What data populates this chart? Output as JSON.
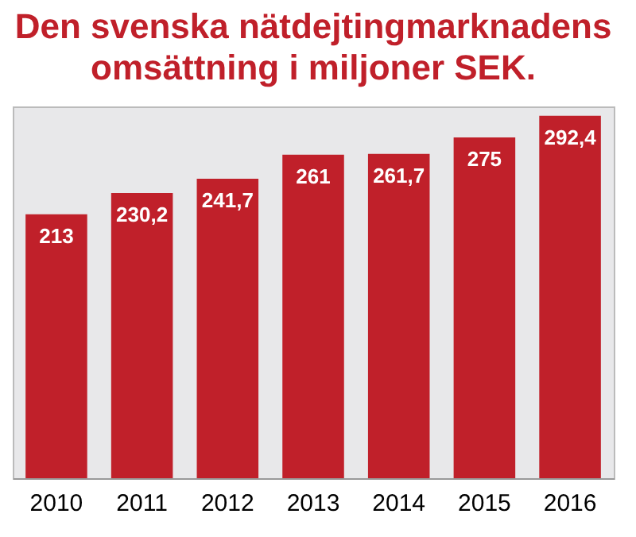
{
  "chart_data": {
    "type": "bar",
    "title": "Den svenska nätdejtingmarknadens omsättning i miljoner SEK.",
    "categories": [
      "2010",
      "2011",
      "2012",
      "2013",
      "2014",
      "2015",
      "2016"
    ],
    "values": [
      213,
      230.2,
      241.7,
      261,
      261.7,
      275,
      292.4
    ],
    "value_labels": [
      "213",
      "230,2",
      "241,7",
      "261",
      "261,7",
      "275",
      "292,4"
    ],
    "color": "#c0202a",
    "ylim": [
      0,
      300
    ],
    "tick_labels": "x"
  }
}
